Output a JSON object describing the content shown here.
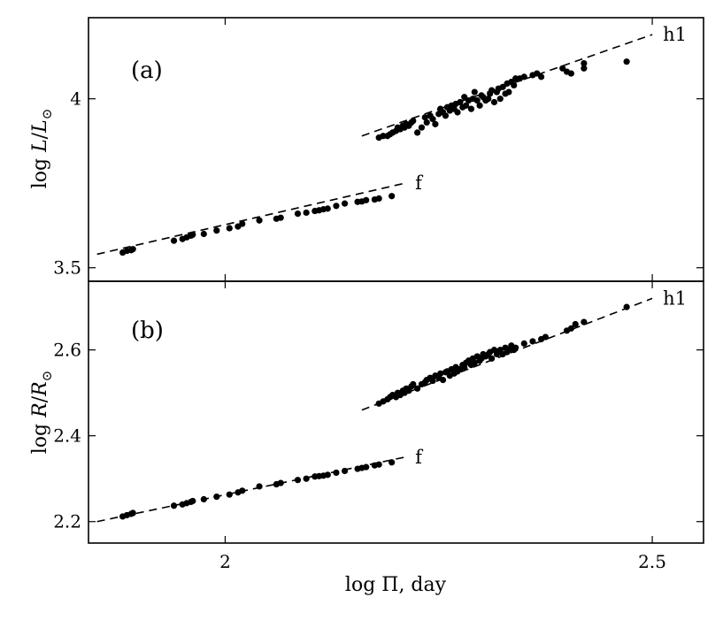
{
  "chart_data": [
    {
      "type": "scatter",
      "panel_label": "(a)",
      "ylabel_parts": [
        "log ",
        "L",
        "/",
        "L",
        "⊙"
      ],
      "xlim": [
        1.84,
        2.56
      ],
      "ylim": [
        3.46,
        4.24
      ],
      "yticks": [
        {
          "value": 3.5,
          "label": "3.5"
        },
        {
          "value": 4.0,
          "label": "4"
        }
      ],
      "fits": [
        {
          "name": "f",
          "x": [
            1.85,
            2.21
          ],
          "y": [
            3.54,
            3.75
          ]
        },
        {
          "name": "h1",
          "x": [
            2.16,
            2.5
          ],
          "y": [
            3.89,
            4.19
          ]
        }
      ],
      "series": [
        {
          "group": "f",
          "x": [
            1.88,
            1.885,
            1.89,
            1.892,
            1.94,
            1.95,
            1.955,
            1.96,
            1.962,
            1.975,
            1.99,
            2.005,
            2.015,
            2.02,
            2.04,
            2.06,
            2.065,
            2.085,
            2.095,
            2.105,
            2.11,
            2.115,
            2.12,
            2.13,
            2.14,
            2.155,
            2.16,
            2.165,
            2.175,
            2.18,
            2.195
          ],
          "y": [
            3.545,
            3.55,
            3.552,
            3.555,
            3.58,
            3.585,
            3.59,
            3.595,
            3.598,
            3.6,
            3.61,
            3.617,
            3.622,
            3.63,
            3.64,
            3.645,
            3.648,
            3.66,
            3.663,
            3.668,
            3.67,
            3.673,
            3.675,
            3.683,
            3.69,
            3.695,
            3.696,
            3.7,
            3.702,
            3.705,
            3.712
          ]
        },
        {
          "group": "h1",
          "x": [
            2.18,
            2.185,
            2.19,
            2.193,
            2.196,
            2.2,
            2.202,
            2.205,
            2.208,
            2.21,
            2.212,
            2.215,
            2.218,
            2.22,
            2.225,
            2.23,
            2.234,
            2.236,
            2.24,
            2.243,
            2.246,
            2.25,
            2.252,
            2.255,
            2.258,
            2.26,
            2.263,
            2.265,
            2.268,
            2.27,
            2.272,
            2.275,
            2.278,
            2.28,
            2.282,
            2.285,
            2.288,
            2.29,
            2.292,
            2.295,
            2.298,
            2.3,
            2.302,
            2.305,
            2.308,
            2.31,
            2.312,
            2.315,
            2.318,
            2.32,
            2.322,
            2.325,
            2.328,
            2.33,
            2.332,
            2.335,
            2.338,
            2.34,
            2.345,
            2.35,
            2.36,
            2.365,
            2.37,
            2.395,
            2.4,
            2.405,
            2.42,
            2.42,
            2.47
          ],
          "y": [
            3.885,
            3.89,
            3.89,
            3.895,
            3.9,
            3.905,
            3.915,
            3.91,
            3.92,
            3.915,
            3.925,
            3.92,
            3.93,
            3.935,
            3.9,
            3.915,
            3.945,
            3.93,
            3.95,
            3.94,
            3.925,
            3.955,
            3.97,
            3.96,
            3.95,
            3.975,
            3.965,
            3.98,
            3.97,
            3.985,
            3.96,
            3.99,
            3.975,
            4.005,
            3.98,
            3.995,
            3.97,
            4.0,
            4.02,
            3.995,
            3.98,
            4.01,
            4.005,
            3.995,
            4.0,
            4.015,
            4.025,
            3.99,
            4.02,
            4.03,
            4.0,
            4.035,
            4.015,
            4.045,
            4.02,
            4.05,
            4.04,
            4.06,
            4.06,
            4.065,
            4.07,
            4.075,
            4.065,
            4.09,
            4.08,
            4.075,
            4.09,
            4.105,
            4.11
          ]
        }
      ]
    },
    {
      "type": "scatter",
      "panel_label": "(b)",
      "ylabel_parts": [
        "log ",
        "R",
        "/",
        "R",
        "⊙"
      ],
      "xlim": [
        1.84,
        2.56
      ],
      "ylim": [
        2.15,
        2.76
      ],
      "xlabel": "log Π, day",
      "xticks": [
        {
          "value": 2.0,
          "label": "2"
        },
        {
          "value": 2.5,
          "label": "2.5"
        }
      ],
      "yticks": [
        {
          "value": 2.2,
          "label": "2.2"
        },
        {
          "value": 2.4,
          "label": "2.4"
        },
        {
          "value": 2.6,
          "label": "2.6"
        }
      ],
      "fits": [
        {
          "name": "f",
          "x": [
            1.85,
            2.21
          ],
          "y": [
            2.2,
            2.35
          ]
        },
        {
          "name": "h1",
          "x": [
            2.16,
            2.5
          ],
          "y": [
            2.46,
            2.72
          ]
        }
      ],
      "series": [
        {
          "group": "f",
          "x": [
            1.88,
            1.885,
            1.89,
            1.892,
            1.94,
            1.95,
            1.955,
            1.96,
            1.962,
            1.975,
            1.99,
            2.005,
            2.015,
            2.02,
            2.04,
            2.06,
            2.065,
            2.085,
            2.095,
            2.105,
            2.11,
            2.115,
            2.12,
            2.13,
            2.14,
            2.155,
            2.16,
            2.165,
            2.175,
            2.18,
            2.195
          ],
          "y": [
            2.212,
            2.215,
            2.218,
            2.22,
            2.237,
            2.24,
            2.243,
            2.246,
            2.248,
            2.252,
            2.258,
            2.263,
            2.268,
            2.272,
            2.282,
            2.287,
            2.29,
            2.297,
            2.3,
            2.305,
            2.306,
            2.307,
            2.309,
            2.314,
            2.318,
            2.323,
            2.325,
            2.327,
            2.331,
            2.333,
            2.338
          ]
        },
        {
          "group": "h1",
          "x": [
            2.18,
            2.185,
            2.19,
            2.193,
            2.196,
            2.2,
            2.202,
            2.205,
            2.208,
            2.21,
            2.212,
            2.215,
            2.218,
            2.22,
            2.225,
            2.23,
            2.234,
            2.236,
            2.24,
            2.243,
            2.246,
            2.25,
            2.252,
            2.255,
            2.258,
            2.26,
            2.263,
            2.265,
            2.268,
            2.27,
            2.272,
            2.275,
            2.278,
            2.28,
            2.282,
            2.285,
            2.288,
            2.29,
            2.292,
            2.295,
            2.298,
            2.3,
            2.302,
            2.305,
            2.308,
            2.31,
            2.312,
            2.315,
            2.318,
            2.32,
            2.322,
            2.325,
            2.328,
            2.33,
            2.332,
            2.335,
            2.338,
            2.34,
            2.35,
            2.36,
            2.37,
            2.375,
            2.4,
            2.405,
            2.41,
            2.42,
            2.47
          ],
          "y": [
            2.475,
            2.48,
            2.485,
            2.49,
            2.495,
            2.49,
            2.5,
            2.495,
            2.505,
            2.5,
            2.51,
            2.505,
            2.515,
            2.52,
            2.51,
            2.52,
            2.525,
            2.53,
            2.535,
            2.528,
            2.54,
            2.535,
            2.545,
            2.53,
            2.548,
            2.55,
            2.54,
            2.555,
            2.545,
            2.56,
            2.55,
            2.555,
            2.565,
            2.56,
            2.57,
            2.575,
            2.565,
            2.58,
            2.57,
            2.585,
            2.575,
            2.58,
            2.59,
            2.585,
            2.59,
            2.595,
            2.58,
            2.6,
            2.59,
            2.595,
            2.6,
            2.59,
            2.605,
            2.595,
            2.6,
            2.61,
            2.6,
            2.605,
            2.615,
            2.62,
            2.625,
            2.63,
            2.645,
            2.65,
            2.66,
            2.665,
            2.7
          ]
        }
      ]
    }
  ]
}
